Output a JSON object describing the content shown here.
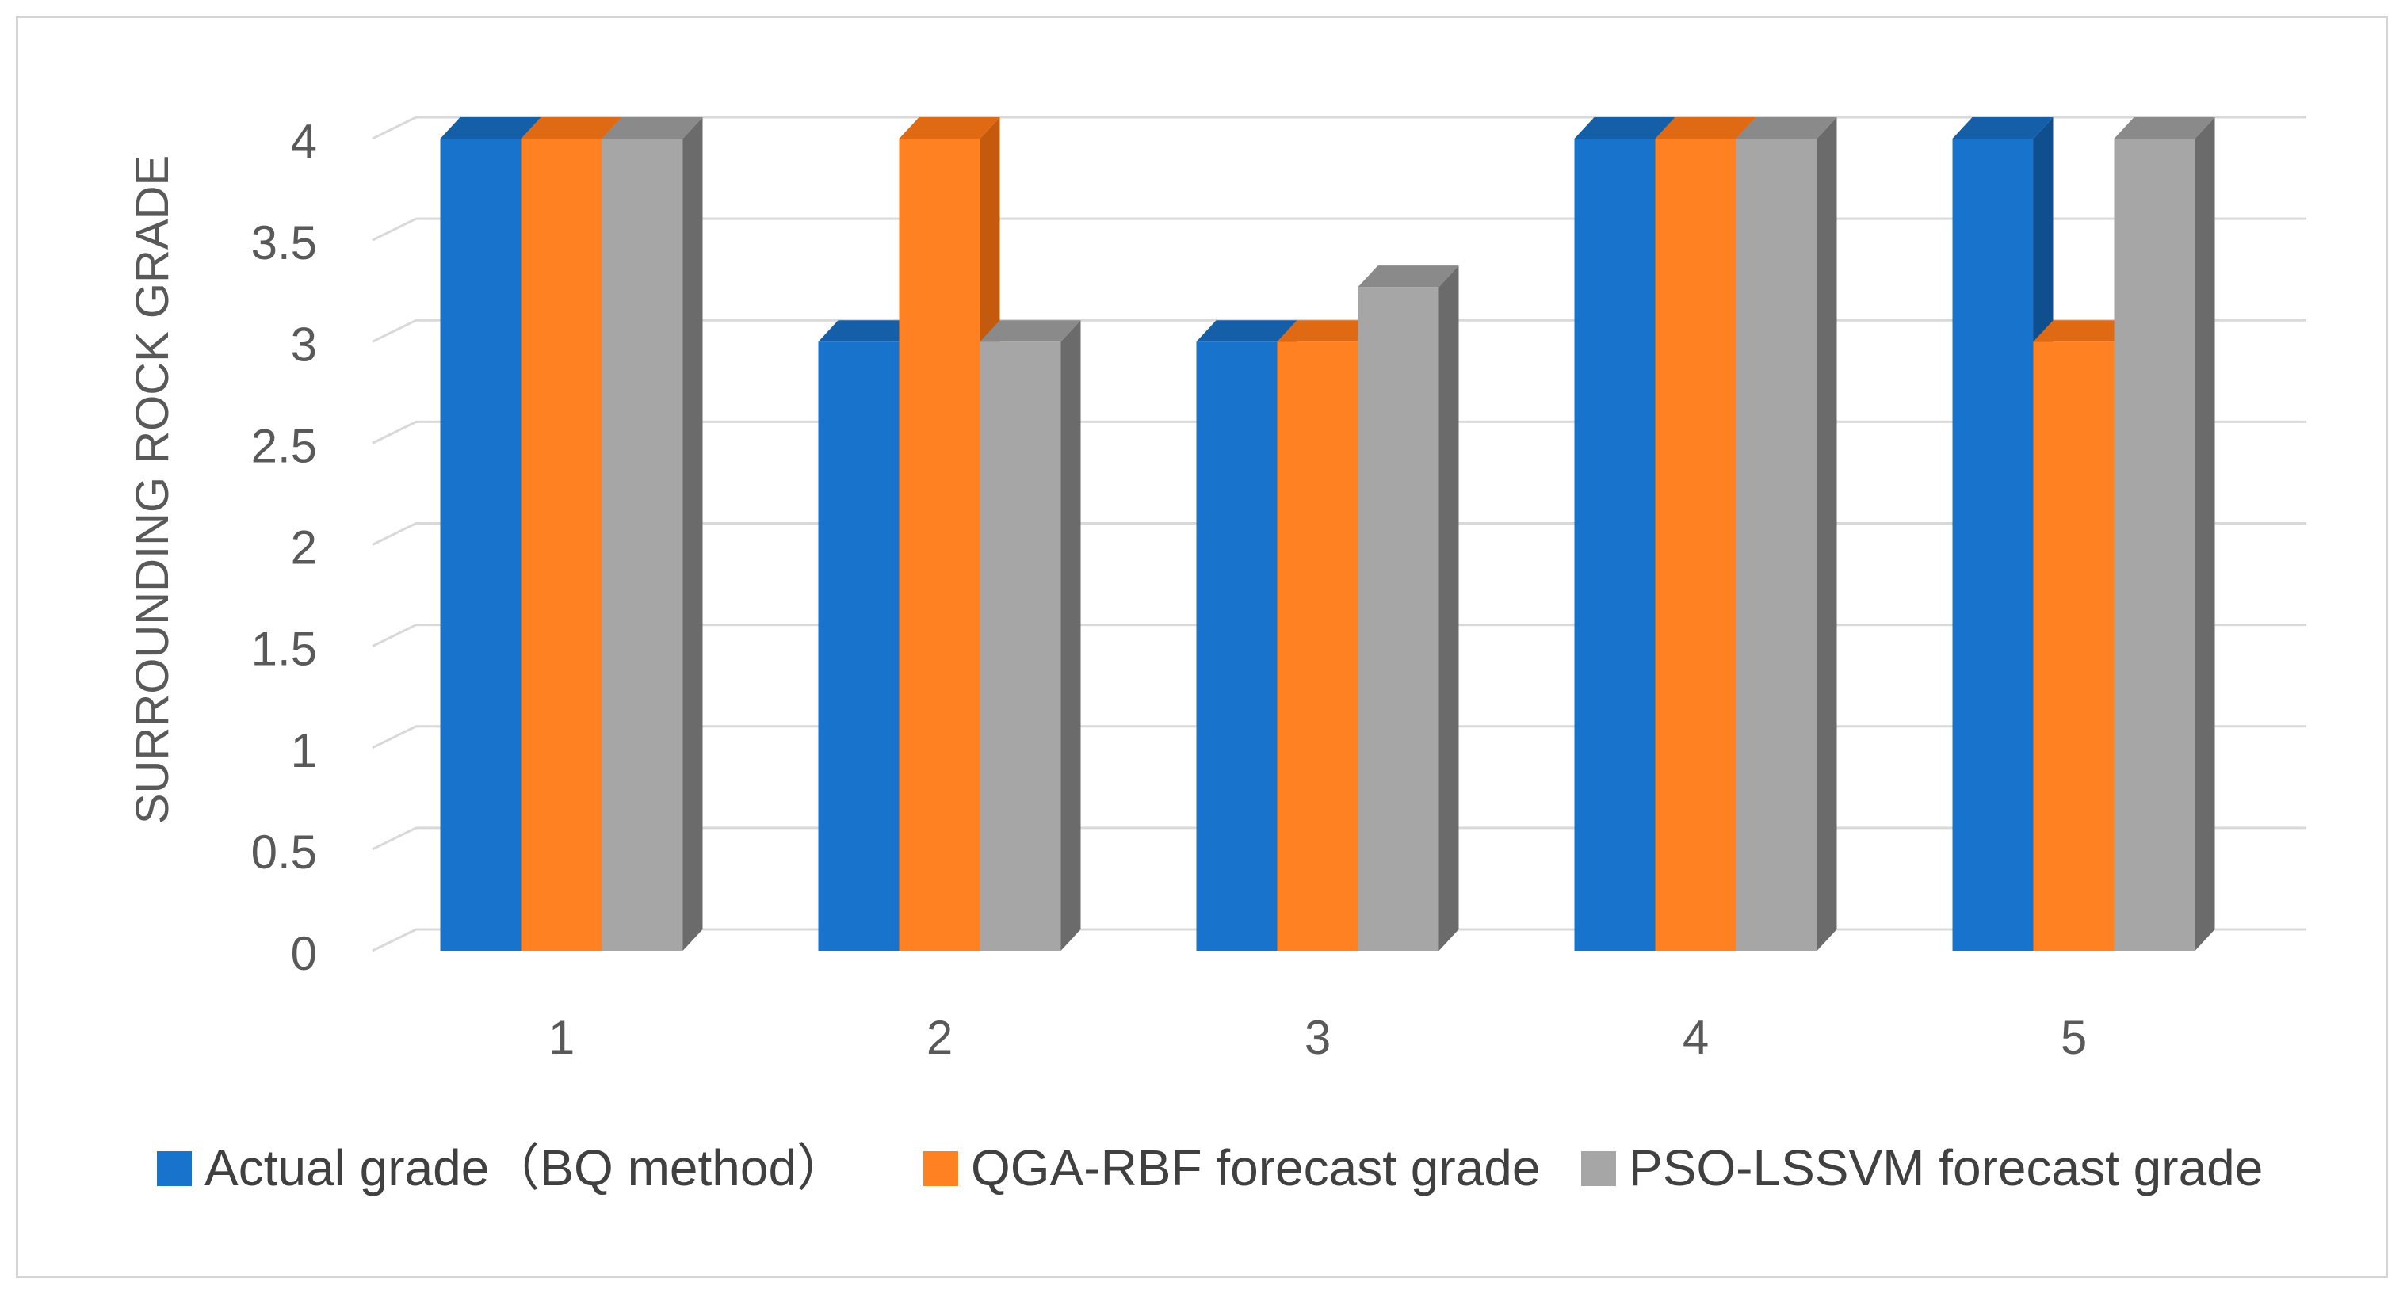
{
  "chart_data": {
    "type": "bar",
    "style": "3d-clustered-column",
    "title": "",
    "xlabel": "",
    "ylabel": "SURROUNDING ROCK GRADE",
    "categories": [
      "1",
      "2",
      "3",
      "4",
      "5"
    ],
    "ylim": [
      0,
      4
    ],
    "yticks": [
      "0",
      "0.5",
      "1",
      "1.5",
      "2",
      "2.5",
      "3",
      "3.5",
      "4"
    ],
    "grid": true,
    "legend_position": "bottom",
    "series": [
      {
        "name": "Actual grade（BQ method）",
        "values": [
          4,
          3,
          3,
          4,
          4
        ],
        "color": "#1873cc",
        "side_color": "#0f4f8f",
        "top_color": "#145fa8"
      },
      {
        "name": "QGA-RBF forecast grade",
        "values": [
          4,
          4,
          3,
          4,
          3
        ],
        "color": "#ff8122",
        "side_color": "#c45a0e",
        "top_color": "#e06a14"
      },
      {
        "name": "PSO-LSSVM forecast grade",
        "values": [
          4,
          3,
          3.27,
          4,
          4
        ],
        "color": "#a6a6a6",
        "side_color": "#6b6b6b",
        "top_color": "#8a8a8a"
      }
    ]
  }
}
